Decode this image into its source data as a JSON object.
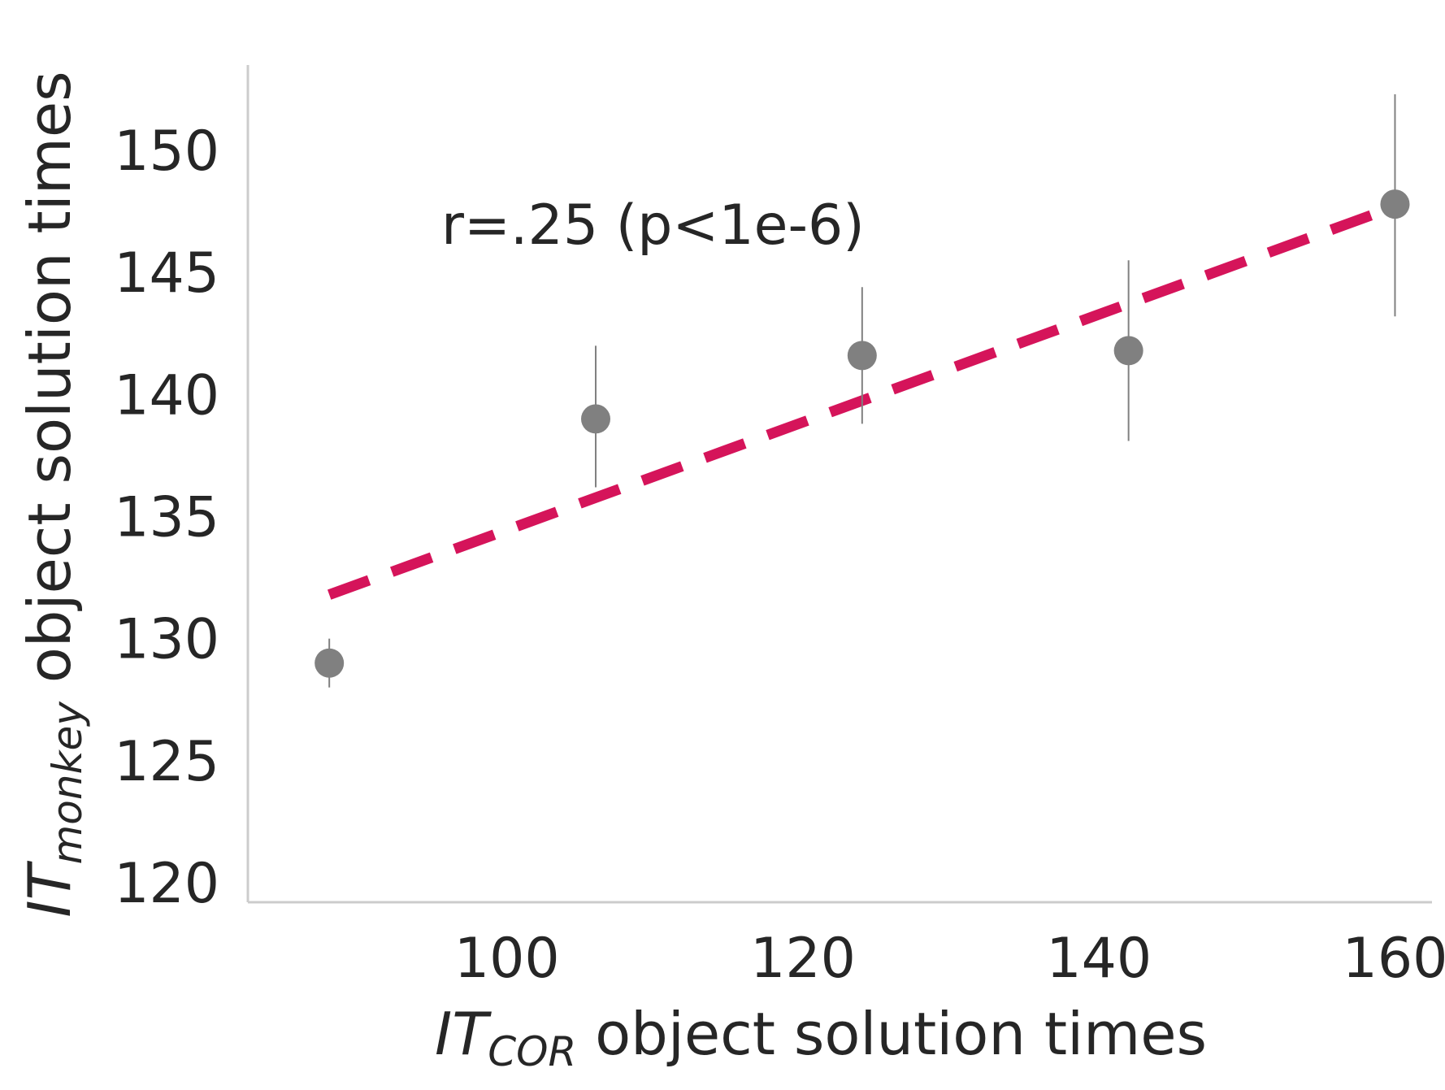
{
  "chart_data": {
    "type": "scatter",
    "title": "",
    "xlabel": {
      "main": "IT",
      "subscript": "COR",
      "rest": " object solution times"
    },
    "ylabel": {
      "main": "IT",
      "subscript": "monkey",
      "rest": " object solution times"
    },
    "xlim": [
      82.5,
      162.5
    ],
    "ylim": [
      119.2,
      153.5
    ],
    "xticks": [
      100,
      120,
      140,
      160
    ],
    "yticks": [
      120,
      125,
      130,
      135,
      140,
      145,
      150
    ],
    "grid": false,
    "annotation": "r=.25 (p<1e-6)",
    "series": [
      {
        "kind": "points_with_error",
        "color": "#808080",
        "x": [
          88,
          106,
          124,
          142,
          160
        ],
        "y": [
          129.0,
          139.0,
          141.6,
          141.8,
          147.8
        ],
        "err_low": [
          128.0,
          136.2,
          138.8,
          138.1,
          143.2
        ],
        "err_high": [
          130.0,
          142.0,
          144.4,
          145.5,
          152.3
        ]
      },
      {
        "kind": "regression_line",
        "style": "dashed",
        "color": "#d5145a",
        "x": [
          88,
          160
        ],
        "y": [
          131.8,
          147.7
        ]
      }
    ]
  }
}
